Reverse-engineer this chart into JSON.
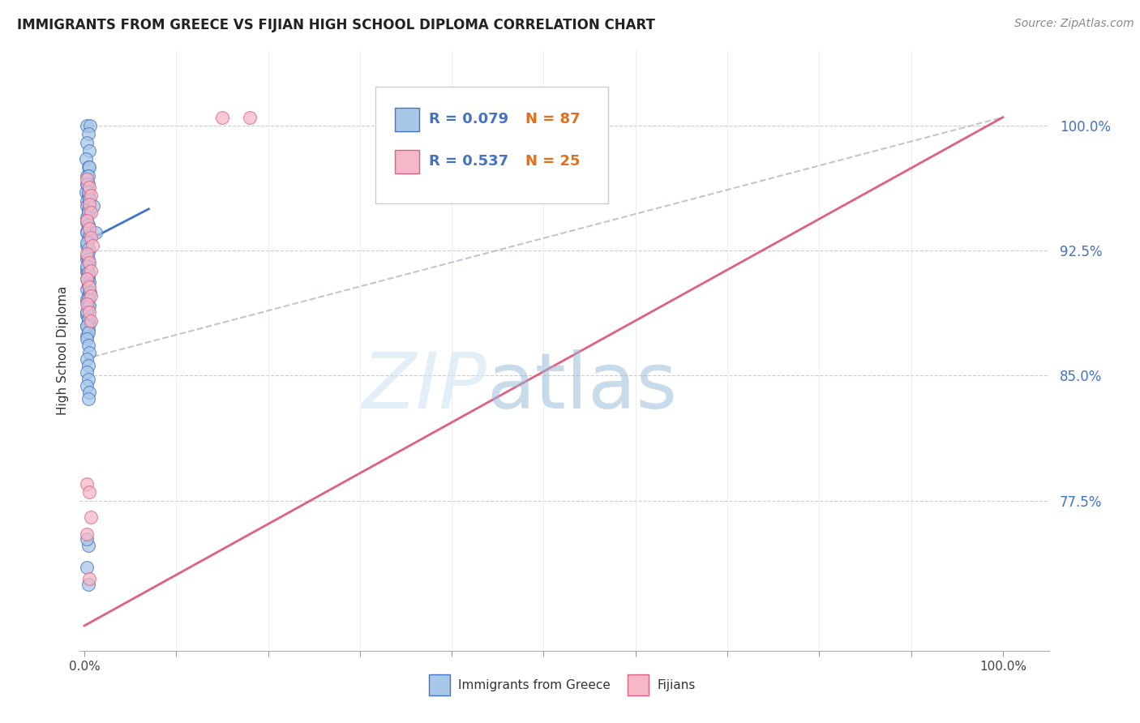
{
  "title": "IMMIGRANTS FROM GREECE VS FIJIAN HIGH SCHOOL DIPLOMA CORRELATION CHART",
  "source": "Source: ZipAtlas.com",
  "ylabel": "High School Diploma",
  "yticks": [
    0.775,
    0.85,
    0.925,
    1.0
  ],
  "ytick_labels": [
    "77.5%",
    "85.0%",
    "92.5%",
    "100.0%"
  ],
  "xmin": -0.005,
  "xmax": 1.05,
  "ymin": 0.685,
  "ymax": 1.045,
  "blue_color": "#a8c8e8",
  "pink_color": "#f4b8c8",
  "blue_line_color": "#4472c4",
  "pink_line_color": "#e06080",
  "gray_dash_color": "#b0b8c8",
  "blue_scatter_x": [
    0.003,
    0.006,
    0.004,
    0.003,
    0.005,
    0.002,
    0.004,
    0.003,
    0.005,
    0.004,
    0.003,
    0.004,
    0.002,
    0.003,
    0.004,
    0.003,
    0.004,
    0.003,
    0.003,
    0.004,
    0.003,
    0.005,
    0.004,
    0.004,
    0.003,
    0.004,
    0.003,
    0.004,
    0.003,
    0.004,
    0.003,
    0.004,
    0.003,
    0.004,
    0.005,
    0.003,
    0.004,
    0.003,
    0.004,
    0.003,
    0.004,
    0.005,
    0.003,
    0.004,
    0.003,
    0.004,
    0.003,
    0.005,
    0.004,
    0.003,
    0.004,
    0.003,
    0.004,
    0.003,
    0.004,
    0.005,
    0.003,
    0.004,
    0.003,
    0.004,
    0.003,
    0.006,
    0.004,
    0.005,
    0.003,
    0.004,
    0.003,
    0.004,
    0.003,
    0.004,
    0.005,
    0.003,
    0.004,
    0.003,
    0.004,
    0.003,
    0.005,
    0.012,
    0.004,
    0.003,
    0.004,
    0.003,
    0.004,
    0.005,
    0.01,
    0.004,
    0.003
  ],
  "blue_scatter_y": [
    1.0,
    1.0,
    0.995,
    0.99,
    0.985,
    0.98,
    0.975,
    0.97,
    0.975,
    0.97,
    0.965,
    0.965,
    0.96,
    0.955,
    0.958,
    0.952,
    0.948,
    0.945,
    0.942,
    0.94,
    0.937,
    0.955,
    0.95,
    0.948,
    0.943,
    0.94,
    0.936,
    0.932,
    0.928,
    0.924,
    0.92,
    0.916,
    0.912,
    0.908,
    0.934,
    0.93,
    0.926,
    0.922,
    0.918,
    0.914,
    0.91,
    0.906,
    0.902,
    0.898,
    0.894,
    0.89,
    0.886,
    0.882,
    0.878,
    0.874,
    0.92,
    0.916,
    0.912,
    0.908,
    0.904,
    0.9,
    0.896,
    0.892,
    0.888,
    0.884,
    0.88,
    0.9,
    0.896,
    0.892,
    0.888,
    0.884,
    0.88,
    0.876,
    0.872,
    0.868,
    0.864,
    0.86,
    0.856,
    0.852,
    0.848,
    0.844,
    0.84,
    0.936,
    0.836,
    0.735,
    0.725,
    0.965,
    0.96,
    0.956,
    0.952,
    0.748,
    0.752
  ],
  "pink_scatter_x": [
    0.003,
    0.005,
    0.007,
    0.005,
    0.007,
    0.003,
    0.005,
    0.007,
    0.009,
    0.003,
    0.005,
    0.007,
    0.003,
    0.005,
    0.007,
    0.003,
    0.005,
    0.007,
    0.003,
    0.005,
    0.007,
    0.003,
    0.005,
    0.15,
    0.18
  ],
  "pink_scatter_y": [
    0.968,
    0.963,
    0.958,
    0.953,
    0.948,
    0.943,
    0.938,
    0.933,
    0.928,
    0.923,
    0.918,
    0.913,
    0.908,
    0.903,
    0.898,
    0.893,
    0.888,
    0.883,
    0.785,
    0.78,
    0.765,
    0.755,
    0.728,
    1.005,
    1.005
  ],
  "blue_trend_x0": 0.0,
  "blue_trend_x1": 0.07,
  "blue_trend_y0": 0.93,
  "blue_trend_y1": 0.95,
  "pink_trend_x0": 0.0,
  "pink_trend_x1": 1.0,
  "pink_trend_y0": 0.7,
  "pink_trend_y1": 1.005,
  "gray_trend_x0": 0.0,
  "gray_trend_x1": 1.0,
  "gray_trend_y0": 0.86,
  "gray_trend_y1": 1.005
}
